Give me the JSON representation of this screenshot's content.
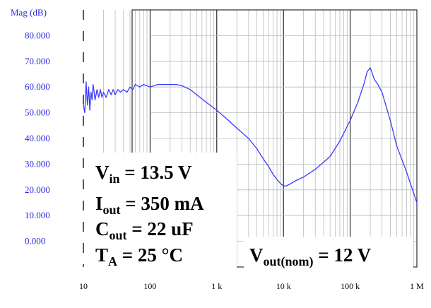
{
  "chart_data": {
    "type": "line",
    "ylabel": "Mag (dB)",
    "x_scale": "log",
    "xlim": [
      10,
      1000000
    ],
    "ylim": [
      -10,
      90
    ],
    "x_ticks": [
      {
        "value": 10,
        "label": "10"
      },
      {
        "value": 100,
        "label": "100"
      },
      {
        "value": 1000,
        "label": "1 k"
      },
      {
        "value": 10000,
        "label": "10 k"
      },
      {
        "value": 100000,
        "label": "100 k"
      },
      {
        "value": 1000000,
        "label": "1 M"
      }
    ],
    "y_ticks": [
      {
        "value": 80,
        "label": "80.000"
      },
      {
        "value": 70,
        "label": "70.000"
      },
      {
        "value": 60,
        "label": "60.000"
      },
      {
        "value": 50,
        "label": "50.000"
      },
      {
        "value": 40,
        "label": "40.000"
      },
      {
        "value": 30,
        "label": "30.000"
      },
      {
        "value": 20,
        "label": "20.000"
      },
      {
        "value": 10,
        "label": "10.000"
      },
      {
        "value": 0,
        "label": "0.000"
      }
    ],
    "grid": true,
    "series": [
      {
        "color": "#3a3aff",
        "x": [
          10,
          10.5,
          11,
          11.5,
          12,
          12.5,
          13,
          13.5,
          14,
          15,
          16,
          17,
          18,
          19,
          20,
          22,
          24,
          26,
          28,
          30,
          33,
          36,
          40,
          45,
          50,
          55,
          60,
          70,
          80,
          100,
          130,
          160,
          200,
          250,
          300,
          400,
          500,
          700,
          1000,
          1500,
          2000,
          3000,
          4000,
          5000,
          6000,
          7000,
          8000,
          9000,
          10000,
          11000,
          12000,
          13000,
          15000,
          20000,
          30000,
          50000,
          70000,
          100000,
          130000,
          160000,
          180000,
          200000,
          210000,
          230000,
          260000,
          300000,
          400000,
          500000,
          700000,
          1000000
        ],
        "y": [
          53,
          50,
          62,
          53,
          60,
          51,
          58,
          55,
          61,
          55,
          59,
          56,
          59,
          56,
          58,
          56,
          59,
          57,
          59,
          57,
          59,
          58,
          59,
          58,
          60,
          59,
          61,
          60,
          61,
          60,
          61,
          61,
          61,
          61,
          60.5,
          59,
          57,
          54,
          51,
          47,
          44,
          40,
          36,
          32,
          29,
          26,
          24,
          22.5,
          21.5,
          21.5,
          22,
          22.5,
          23.5,
          25,
          28,
          33,
          39,
          47,
          54,
          61,
          66,
          67.5,
          66,
          63,
          61,
          58,
          47,
          37,
          27,
          15
        ]
      }
    ],
    "annotations": [
      {
        "main": "V",
        "sub": "in",
        "rest": " = 13.5 V"
      },
      {
        "main": "I",
        "sub": "out",
        "rest": " = 350 mA"
      },
      {
        "main": "C",
        "sub": "out",
        "rest": " = 22 uF"
      },
      {
        "main": "T",
        "sub": "A",
        "rest": " = 25 °C"
      },
      {
        "main": "V",
        "sub": "out(nom)",
        "rest": " = 12 V"
      }
    ]
  }
}
